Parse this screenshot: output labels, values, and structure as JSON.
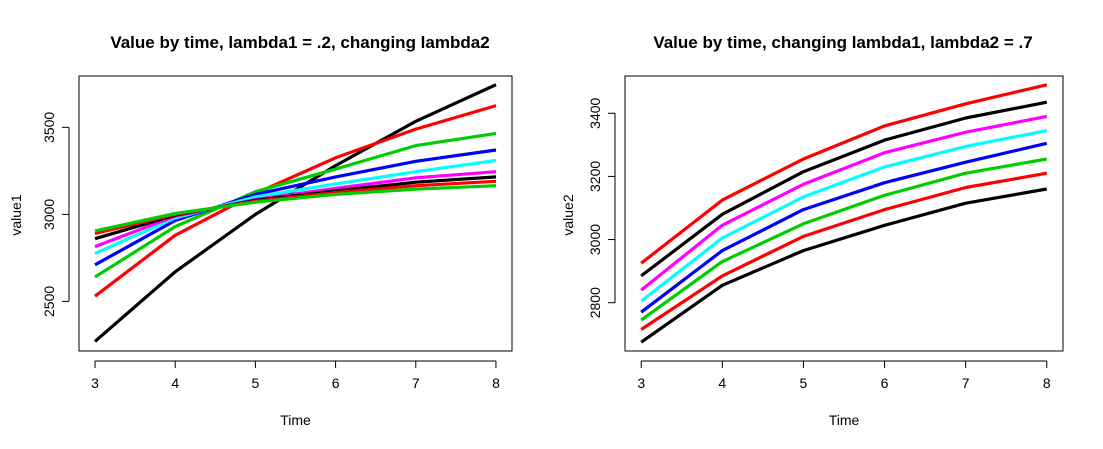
{
  "chart_data": [
    {
      "type": "line",
      "title": "Value by time, lambda1 = .2, changing lambda2",
      "xlabel": "Time",
      "ylabel": "value1",
      "xlim": [
        2.8,
        8.2
      ],
      "ylim": [
        2215,
        3795
      ],
      "xticks": [
        3,
        4,
        5,
        6,
        7,
        8
      ],
      "yticks": [
        2500,
        3000,
        3500
      ],
      "grid": false,
      "x": [
        3,
        4,
        5,
        6,
        7,
        8
      ],
      "series": [
        {
          "color": "#000000",
          "values": [
            2270,
            2670,
            3000,
            3280,
            3535,
            3745
          ]
        },
        {
          "color": "#ff0000",
          "values": [
            2530,
            2880,
            3120,
            3325,
            3490,
            3625
          ]
        },
        {
          "color": "#00cd00",
          "values": [
            2640,
            2930,
            3130,
            3260,
            3395,
            3465
          ]
        },
        {
          "color": "#0000ff",
          "values": [
            2710,
            2965,
            3115,
            3215,
            3305,
            3370
          ]
        },
        {
          "color": "#00ffff",
          "values": [
            2775,
            2980,
            3100,
            3175,
            3245,
            3310
          ]
        },
        {
          "color": "#ff00ff",
          "values": [
            2815,
            2990,
            3085,
            3150,
            3210,
            3245
          ]
        },
        {
          "color": "#000000",
          "values": [
            2860,
            2995,
            3080,
            3135,
            3185,
            3215
          ]
        },
        {
          "color": "#ff0000",
          "values": [
            2890,
            3000,
            3075,
            3125,
            3165,
            3190
          ]
        },
        {
          "color": "#00cd00",
          "values": [
            2905,
            3005,
            3070,
            3115,
            3145,
            3165
          ]
        }
      ]
    },
    {
      "type": "line",
      "title": "Value by time, changing lambda1, lambda2 = .7",
      "xlabel": "Time",
      "ylabel": "value2",
      "xlim": [
        2.8,
        8.2
      ],
      "ylim": [
        2647,
        3518
      ],
      "xticks": [
        3,
        4,
        5,
        6,
        7,
        8
      ],
      "yticks": [
        2800,
        3000,
        3200,
        3400
      ],
      "grid": false,
      "x": [
        3,
        4,
        5,
        6,
        7,
        8
      ],
      "series": [
        {
          "color": "#000000",
          "values": [
            2675,
            2855,
            2965,
            3045,
            3115,
            3160
          ]
        },
        {
          "color": "#ff0000",
          "values": [
            2715,
            2885,
            3010,
            3095,
            3165,
            3210
          ]
        },
        {
          "color": "#00cd00",
          "values": [
            2745,
            2930,
            3050,
            3140,
            3210,
            3255
          ]
        },
        {
          "color": "#0000ff",
          "values": [
            2770,
            2965,
            3095,
            3180,
            3245,
            3305
          ]
        },
        {
          "color": "#00ffff",
          "values": [
            2805,
            3005,
            3135,
            3230,
            3295,
            3345
          ]
        },
        {
          "color": "#ff00ff",
          "values": [
            2840,
            3045,
            3175,
            3275,
            3340,
            3390
          ]
        },
        {
          "color": "#000000",
          "values": [
            2885,
            3080,
            3215,
            3315,
            3385,
            3435
          ]
        },
        {
          "color": "#ff0000",
          "values": [
            2925,
            3125,
            3255,
            3360,
            3430,
            3490
          ]
        }
      ]
    }
  ]
}
